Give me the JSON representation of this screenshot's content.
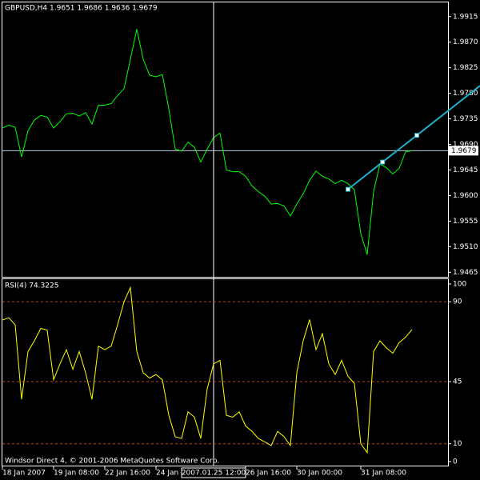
{
  "chart_data": [
    {
      "type": "line",
      "title": "GBPUSD,H4  1.9651 1.9686 1.9636 1.9679",
      "categories": [
        "18 Jan 2007",
        null,
        null,
        null,
        null,
        null,
        null,
        null,
        "19 Jan 08:00",
        null,
        null,
        null,
        null,
        null,
        null,
        null,
        "22 Jan 16:00",
        null,
        null,
        null,
        null,
        null,
        null,
        null,
        "24 Jan 00:00",
        null,
        null,
        null,
        null,
        null,
        null,
        null,
        null,
        null,
        null,
        null,
        null,
        null,
        "26 Jan 16:00",
        null,
        null,
        null,
        null,
        null,
        null,
        null,
        "30 Jan 00:00",
        null,
        null,
        null,
        null,
        null,
        null,
        null,
        null,
        null,
        "31 Jan 08:00",
        null,
        null,
        null,
        null,
        null,
        null,
        null,
        null
      ],
      "series": [
        {
          "color": "#00ff00",
          "values": [
            1.9719,
            1.9724,
            1.972,
            1.9668,
            1.9714,
            1.9733,
            1.9741,
            1.9738,
            1.9719,
            1.973,
            1.9744,
            1.9745,
            1.974,
            1.9746,
            1.9726,
            1.9759,
            1.9759,
            1.9762,
            1.9776,
            1.9788,
            1.984,
            1.9893,
            1.984,
            1.9812,
            1.9809,
            1.9813,
            1.9753,
            1.9682,
            1.9678,
            1.9694,
            1.9685,
            1.9659,
            1.9682,
            1.9702,
            1.971,
            1.9645,
            1.9642,
            1.9642,
            1.9634,
            1.9617,
            1.9607,
            1.9599,
            1.9585,
            1.9586,
            1.9582,
            1.9564,
            1.9585,
            1.9603,
            1.9627,
            1.9643,
            1.9634,
            1.9629,
            1.9621,
            1.9627,
            1.9621,
            1.961,
            1.9533,
            1.9496,
            1.9607,
            1.9656,
            1.9649,
            1.9638,
            1.9648,
            1.9677,
            1.9679
          ]
        }
      ],
      "ylim": [
        1.9457,
        1.994
      ],
      "yticks": [
        1.9465,
        {
          "value": 1.951,
          "label": "1.9510"
        },
        1.9555,
        {
          "value": 1.96,
          "label": "1.9600"
        },
        1.9645,
        {
          "value": 1.969,
          "label": "1.9690"
        },
        1.9735,
        {
          "value": 1.978,
          "label": "1.9780"
        },
        1.9825,
        {
          "value": 1.987,
          "label": "1.9870"
        },
        1.9915
      ],
      "price_line": {
        "value": 1.9679,
        "color": "#b4c8dc"
      },
      "trend_line": {
        "color": "#1ab0c8",
        "x": [
          54,
          59.4,
          64.75
        ],
        "values": [
          1.9611,
          1.9659,
          1.9706
        ]
      },
      "crosshair": {
        "x": 33,
        "label": "2007.01.25 12:00"
      },
      "footer": "Windsor Direct 4, © 2001-2006 MetaQuotes Software Corp."
    },
    {
      "type": "line",
      "title": "RSI(4) 74.3225",
      "series": [
        {
          "color": "#ffff00",
          "values": [
            79.7,
            81,
            77,
            35,
            62,
            68,
            75,
            74,
            46,
            55,
            63,
            52,
            62,
            50,
            35,
            65,
            63,
            65,
            77,
            90,
            98,
            62,
            50,
            47,
            49,
            46,
            26,
            14,
            13,
            28,
            25,
            13,
            41,
            55,
            57,
            26,
            25,
            28,
            20,
            17,
            13,
            11,
            9,
            17,
            14,
            9,
            50,
            68,
            80,
            63,
            72,
            55,
            49,
            57,
            48,
            44,
            10,
            5,
            62,
            68,
            64,
            61,
            67,
            70,
            74.3225
          ]
        }
      ],
      "ylim": [
        -2.3,
        102.7
      ],
      "yticks": [
        0,
        10,
        45,
        90,
        100
      ],
      "levels": [
        10,
        45,
        90
      ],
      "level_color": "#c04020"
    }
  ]
}
